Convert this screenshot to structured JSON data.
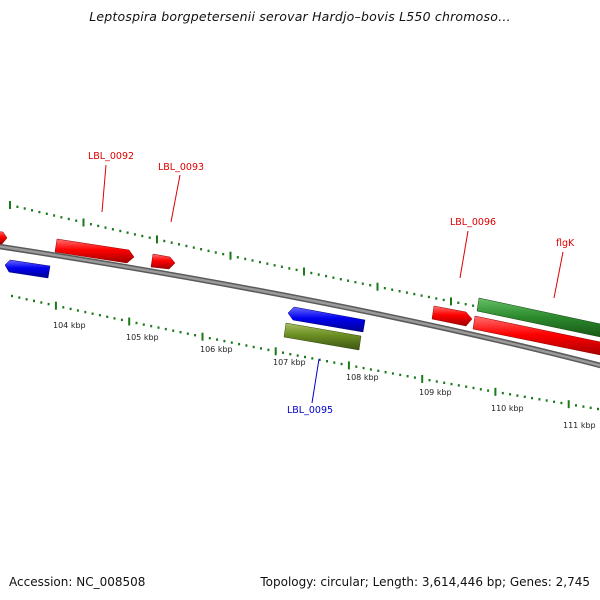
{
  "title": "Leptospira borgpetersenii serovar Hardjo–bovis L550 chromoso…",
  "footer": {
    "accession": "Accession: NC_008508",
    "summary": "Topology: circular; Length: 3,614,446 bp; Genes: 2,745"
  },
  "colors": {
    "backbone": "#808080",
    "tick": "#1a7a1a",
    "forward_gene": "#ff0000",
    "reverse_gene": "#0000ee",
    "rrna_like": "#6b8e23",
    "green_gene": "#2e8b2e",
    "label_red": "#dd0000",
    "label_blue": "#0000cc"
  },
  "scale_labels": [
    "104 kbp",
    "105 kbp",
    "106 kbp",
    "107 kbp",
    "108 kbp",
    "109 kbp",
    "110 kbp",
    "111 kbp"
  ],
  "gene_labels": [
    {
      "id": "g92",
      "text": "LBL_0092",
      "color": "label_red"
    },
    {
      "id": "g93",
      "text": "LBL_0093",
      "color": "label_red"
    },
    {
      "id": "g96",
      "text": "LBL_0096",
      "color": "label_red"
    },
    {
      "id": "flgK",
      "text": "flgK",
      "color": "label_red"
    },
    {
      "id": "g95",
      "text": "LBL_0095",
      "color": "label_blue"
    }
  ]
}
